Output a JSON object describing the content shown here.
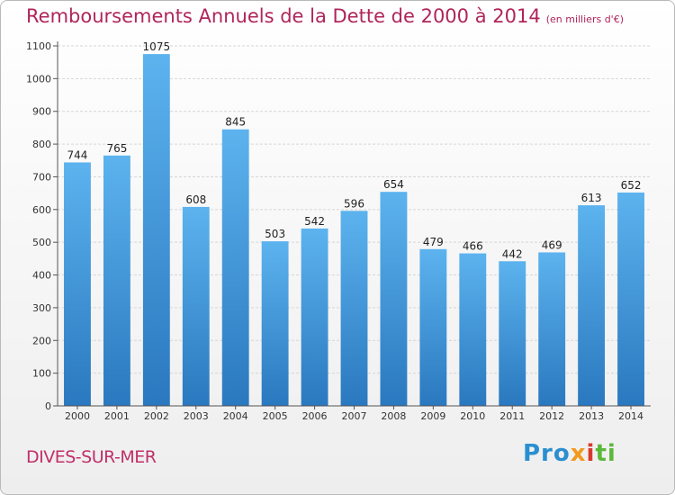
{
  "chart_data": {
    "type": "bar",
    "title": "Remboursements Annuels de la Dette de 2000 à 2014",
    "subtitle": "(en milliers d'€)",
    "categories": [
      "2000",
      "2001",
      "2002",
      "2003",
      "2004",
      "2005",
      "2006",
      "2007",
      "2008",
      "2009",
      "2010",
      "2011",
      "2012",
      "2013",
      "2014"
    ],
    "values": [
      744,
      765,
      1075,
      608,
      845,
      503,
      542,
      596,
      654,
      479,
      466,
      442,
      469,
      613,
      652
    ],
    "ylim": [
      0,
      1100
    ],
    "yticks": [
      0,
      100,
      200,
      300,
      400,
      500,
      600,
      700,
      800,
      900,
      1000,
      1100
    ],
    "grid": true,
    "bar_color": "#4a9de0"
  },
  "footer": {
    "commune": "DIVES-SUR-MER",
    "logo": {
      "p1": "Pro",
      "p2": "x",
      "p3": "i",
      "p4": "ti"
    }
  }
}
